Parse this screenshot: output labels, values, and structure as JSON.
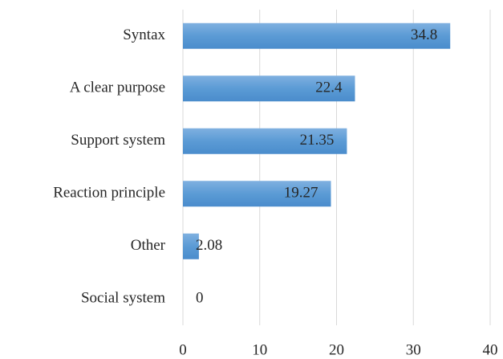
{
  "chart_data": {
    "type": "bar",
    "orientation": "horizontal",
    "categories": [
      "Syntax",
      "A clear purpose",
      "Support system",
      "Reaction principle",
      "Other",
      "Social system"
    ],
    "values": [
      34.8,
      22.4,
      21.35,
      19.27,
      2.08,
      0
    ],
    "color": "#5b9bd5",
    "xlim": [
      0,
      40
    ],
    "xticks": [
      0,
      10,
      20,
      30,
      40
    ],
    "grid": true
  }
}
